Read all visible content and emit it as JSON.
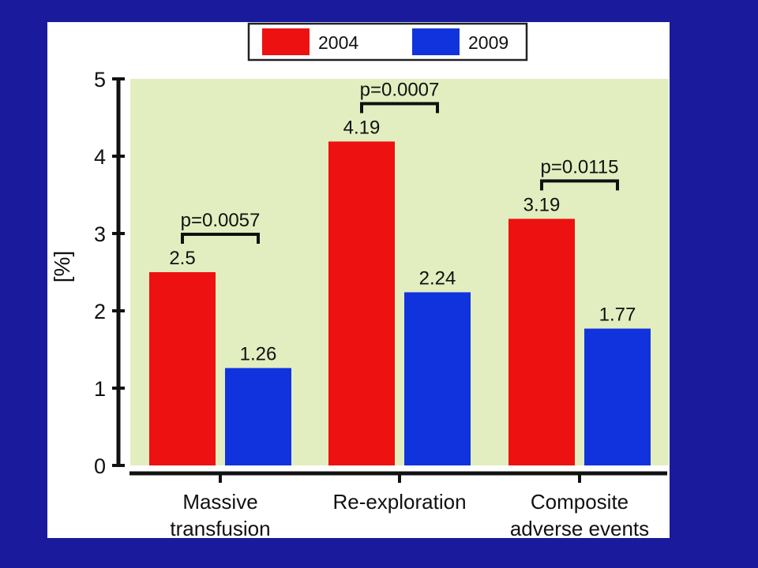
{
  "slide": {
    "background": "#1a1a9c"
  },
  "chart_data": {
    "type": "bar",
    "title": "",
    "xlabel": "",
    "ylabel": "[%]",
    "ylim": [
      0,
      5
    ],
    "yticks": [
      "0",
      "1",
      "2",
      "3",
      "4",
      "5"
    ],
    "categories": [
      [
        "Massive",
        "transfusion"
      ],
      [
        "Re-exploration"
      ],
      [
        "Composite",
        "adverse events"
      ]
    ],
    "series": [
      {
        "name": "2004",
        "color": "#ee1111",
        "values": [
          2.5,
          4.19,
          3.19
        ],
        "labels": [
          "2.5",
          "4.19",
          "3.19"
        ]
      },
      {
        "name": "2009",
        "color": "#1133dd",
        "values": [
          1.26,
          2.24,
          1.77
        ],
        "labels": [
          "1.26",
          "2.24",
          "1.77"
        ]
      }
    ],
    "annotations": [
      "p=0.0057",
      "p=0.0007",
      "p=0.0115"
    ],
    "plot_background": "#e2eebf",
    "grid": false,
    "legend_position": "top-center"
  }
}
